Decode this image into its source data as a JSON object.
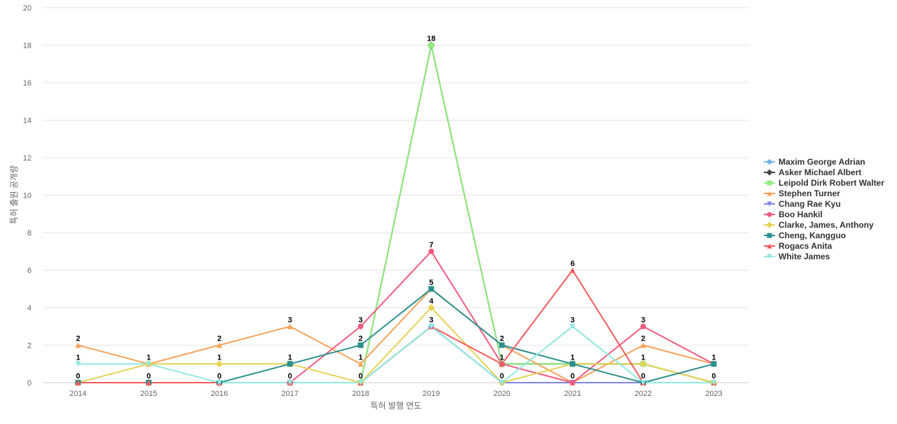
{
  "chart_data": {
    "type": "line",
    "title": "",
    "xlabel": "특허 발행 연도",
    "ylabel": "특허 출원 공개량",
    "ylim": [
      0,
      20
    ],
    "yticks": [
      0,
      2,
      4,
      6,
      8,
      10,
      12,
      14,
      16,
      18,
      20
    ],
    "categories": [
      "2014",
      "2015",
      "2016",
      "2017",
      "2018",
      "2019",
      "2020",
      "2021",
      "2022",
      "2023"
    ],
    "legend_position": "right",
    "series": [
      {
        "name": "Maxim George Adrian",
        "color": "#7cb5ec",
        "marker": "circle",
        "values": [
          0,
          0,
          0,
          0,
          0,
          3,
          0,
          0,
          0,
          0
        ]
      },
      {
        "name": "Asker Michael Albert",
        "color": "#434348",
        "marker": "diamond",
        "values": [
          0,
          0,
          0,
          0,
          0,
          18,
          1,
          1,
          1,
          0
        ]
      },
      {
        "name": "Leipold Dirk Robert Walter",
        "color": "#90ed7d",
        "marker": "square",
        "values": [
          0,
          0,
          0,
          0,
          0,
          18,
          1,
          1,
          1,
          0
        ]
      },
      {
        "name": "Stephen Turner",
        "color": "#f7a35c",
        "marker": "triangle",
        "values": [
          2,
          1,
          2,
          3,
          1,
          5,
          2,
          0,
          2,
          1
        ]
      },
      {
        "name": "Chang Rae Kyu",
        "color": "#8085e9",
        "marker": "triangle-down",
        "values": [
          0,
          0,
          0,
          0,
          0,
          3,
          0,
          0,
          0,
          0
        ]
      },
      {
        "name": "Boo Hankil",
        "color": "#f15c80",
        "marker": "circle",
        "values": [
          0,
          0,
          0,
          0,
          3,
          7,
          1,
          0,
          3,
          1
        ]
      },
      {
        "name": "Clarke, James, Anthony",
        "color": "#e4d354",
        "marker": "diamond",
        "values": [
          0,
          1,
          1,
          1,
          0,
          4,
          0,
          1,
          1,
          0
        ]
      },
      {
        "name": "Cheng, Kangguo",
        "color": "#2b908f",
        "marker": "square",
        "values": [
          0,
          0,
          0,
          1,
          2,
          5,
          2,
          1,
          0,
          1
        ]
      },
      {
        "name": "Rogacs Anita",
        "color": "#f45b5b",
        "marker": "triangle",
        "values": [
          0,
          0,
          0,
          0,
          0,
          3,
          1,
          6,
          0,
          0
        ]
      },
      {
        "name": "White James",
        "color": "#91e8e1",
        "marker": "triangle-down",
        "values": [
          1,
          1,
          0,
          0,
          0,
          3,
          0,
          3,
          0,
          0
        ]
      }
    ],
    "data_labels": [
      {
        "category": "2014",
        "value": 2,
        "text": "2"
      },
      {
        "category": "2014",
        "value": 1,
        "text": "1"
      },
      {
        "category": "2014",
        "value": 0,
        "text": "0"
      },
      {
        "category": "2015",
        "value": 1,
        "text": "1"
      },
      {
        "category": "2015",
        "value": 0,
        "text": "0"
      },
      {
        "category": "2016",
        "value": 2,
        "text": "2"
      },
      {
        "category": "2016",
        "value": 1,
        "text": "1"
      },
      {
        "category": "2016",
        "value": 0,
        "text": "0"
      },
      {
        "category": "2017",
        "value": 3,
        "text": "3"
      },
      {
        "category": "2017",
        "value": 1,
        "text": "1"
      },
      {
        "category": "2017",
        "value": 0,
        "text": "0"
      },
      {
        "category": "2018",
        "value": 3,
        "text": "3"
      },
      {
        "category": "2018",
        "value": 2,
        "text": "2"
      },
      {
        "category": "2018",
        "value": 1,
        "text": "1"
      },
      {
        "category": "2018",
        "value": 0,
        "text": "0"
      },
      {
        "category": "2019",
        "value": 18,
        "text": "18"
      },
      {
        "category": "2019",
        "value": 7,
        "text": "7"
      },
      {
        "category": "2019",
        "value": 5,
        "text": "5"
      },
      {
        "category": "2019",
        "value": 4,
        "text": "4"
      },
      {
        "category": "2019",
        "value": 3,
        "text": "3"
      },
      {
        "category": "2020",
        "value": 2,
        "text": "2"
      },
      {
        "category": "2020",
        "value": 1,
        "text": "1"
      },
      {
        "category": "2020",
        "value": 0,
        "text": "0"
      },
      {
        "category": "2021",
        "value": 6,
        "text": "6"
      },
      {
        "category": "2021",
        "value": 3,
        "text": "3"
      },
      {
        "category": "2021",
        "value": 1,
        "text": "1"
      },
      {
        "category": "2021",
        "value": 0,
        "text": "0"
      },
      {
        "category": "2022",
        "value": 3,
        "text": "3"
      },
      {
        "category": "2022",
        "value": 2,
        "text": "2"
      },
      {
        "category": "2022",
        "value": 1,
        "text": "1"
      },
      {
        "category": "2022",
        "value": 0,
        "text": "0"
      },
      {
        "category": "2023",
        "value": 1,
        "text": "1"
      },
      {
        "category": "2023",
        "value": 0,
        "text": "0"
      }
    ]
  }
}
